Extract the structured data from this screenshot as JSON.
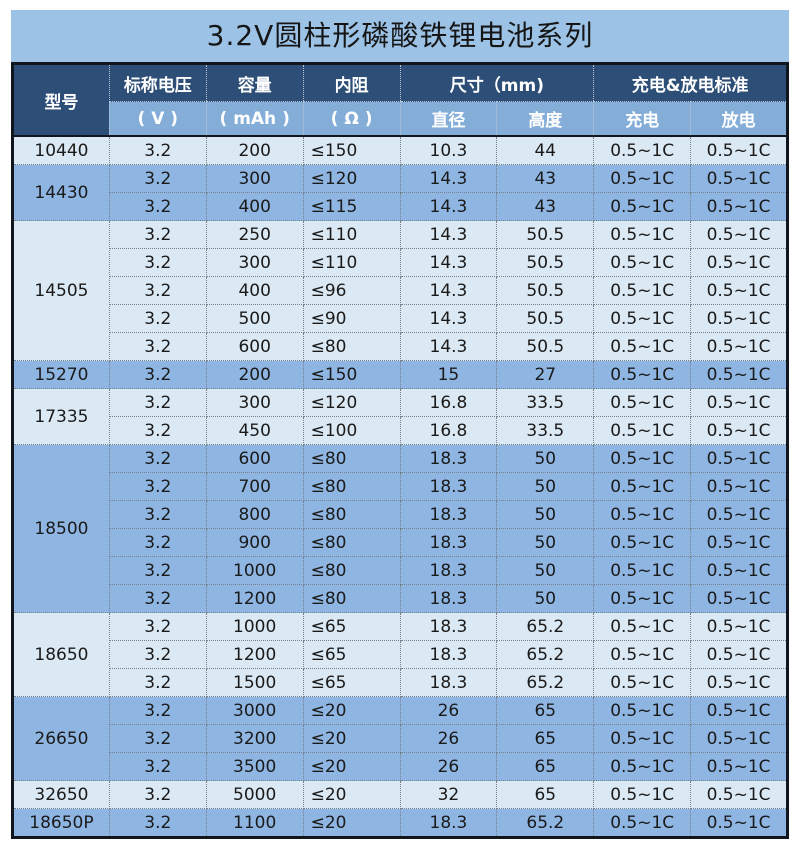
{
  "title": "3.2V圆柱形磷酸铁锂电池系列",
  "colors": {
    "title_bg": "#9cc2e5",
    "header_dark_bg": "#2d4e77",
    "header_sub_bg": "#84add8",
    "row_light": "#dbe9f4",
    "row_medium": "#8fb6e2",
    "outer_border": "#10151e",
    "body_text": "#1a1a1a"
  },
  "header": {
    "model": "型号",
    "voltage": "标称电压",
    "capacity": "容量",
    "resistance": "内阻",
    "size": "尺寸（mm)",
    "standard": "充电&放电标准",
    "voltage_unit": "( V )",
    "capacity_unit": "( mAh )",
    "resistance_unit": "( Ω )",
    "diameter": "直径",
    "height": "高度",
    "charge": "充电",
    "discharge": "放电"
  },
  "groups": [
    {
      "model": "10440",
      "shade": "light",
      "rows": [
        {
          "voltage": "3.2",
          "capacity": "200",
          "resistance": "≤150",
          "diameter": "10.3",
          "height": "44",
          "charge": "0.5~1C",
          "discharge": "0.5~1C"
        }
      ]
    },
    {
      "model": "14430",
      "shade": "medium",
      "rows": [
        {
          "voltage": "3.2",
          "capacity": "300",
          "resistance": "≤120",
          "diameter": "14.3",
          "height": "43",
          "charge": "0.5~1C",
          "discharge": "0.5~1C"
        },
        {
          "voltage": "3.2",
          "capacity": "400",
          "resistance": "≤115",
          "diameter": "14.3",
          "height": "43",
          "charge": "0.5~1C",
          "discharge": "0.5~1C"
        }
      ]
    },
    {
      "model": "14505",
      "shade": "light",
      "rows": [
        {
          "voltage": "3.2",
          "capacity": "250",
          "resistance": "≤110",
          "diameter": "14.3",
          "height": "50.5",
          "charge": "0.5~1C",
          "discharge": "0.5~1C"
        },
        {
          "voltage": "3.2",
          "capacity": "300",
          "resistance": "≤110",
          "diameter": "14.3",
          "height": "50.5",
          "charge": "0.5~1C",
          "discharge": "0.5~1C"
        },
        {
          "voltage": "3.2",
          "capacity": "400",
          "resistance": "≤96",
          "diameter": "14.3",
          "height": "50.5",
          "charge": "0.5~1C",
          "discharge": "0.5~1C"
        },
        {
          "voltage": "3.2",
          "capacity": "500",
          "resistance": "≤90",
          "diameter": "14.3",
          "height": "50.5",
          "charge": "0.5~1C",
          "discharge": "0.5~1C"
        },
        {
          "voltage": "3.2",
          "capacity": "600",
          "resistance": "≤80",
          "diameter": "14.3",
          "height": "50.5",
          "charge": "0.5~1C",
          "discharge": "0.5~1C"
        }
      ]
    },
    {
      "model": "15270",
      "shade": "medium",
      "rows": [
        {
          "voltage": "3.2",
          "capacity": "200",
          "resistance": "≤150",
          "diameter": "15",
          "height": "27",
          "charge": "0.5~1C",
          "discharge": "0.5~1C"
        }
      ]
    },
    {
      "model": "17335",
      "shade": "light",
      "rows": [
        {
          "voltage": "3.2",
          "capacity": "300",
          "resistance": "≤120",
          "diameter": "16.8",
          "height": "33.5",
          "charge": "0.5~1C",
          "discharge": "0.5~1C"
        },
        {
          "voltage": "3.2",
          "capacity": "450",
          "resistance": "≤100",
          "diameter": "16.8",
          "height": "33.5",
          "charge": "0.5~1C",
          "discharge": "0.5~1C"
        }
      ]
    },
    {
      "model": "18500",
      "shade": "medium",
      "rows": [
        {
          "voltage": "3.2",
          "capacity": "600",
          "resistance": "≤80",
          "diameter": "18.3",
          "height": "50",
          "charge": "0.5~1C",
          "discharge": "0.5~1C"
        },
        {
          "voltage": "3.2",
          "capacity": "700",
          "resistance": "≤80",
          "diameter": "18.3",
          "height": "50",
          "charge": "0.5~1C",
          "discharge": "0.5~1C"
        },
        {
          "voltage": "3.2",
          "capacity": "800",
          "resistance": "≤80",
          "diameter": "18.3",
          "height": "50",
          "charge": "0.5~1C",
          "discharge": "0.5~1C"
        },
        {
          "voltage": "3.2",
          "capacity": "900",
          "resistance": "≤80",
          "diameter": "18.3",
          "height": "50",
          "charge": "0.5~1C",
          "discharge": "0.5~1C"
        },
        {
          "voltage": "3.2",
          "capacity": "1000",
          "resistance": "≤80",
          "diameter": "18.3",
          "height": "50",
          "charge": "0.5~1C",
          "discharge": "0.5~1C"
        },
        {
          "voltage": "3.2",
          "capacity": "1200",
          "resistance": "≤80",
          "diameter": "18.3",
          "height": "50",
          "charge": "0.5~1C",
          "discharge": "0.5~1C"
        }
      ]
    },
    {
      "model": "18650",
      "shade": "light",
      "rows": [
        {
          "voltage": "3.2",
          "capacity": "1000",
          "resistance": "≤65",
          "diameter": "18.3",
          "height": "65.2",
          "charge": "0.5~1C",
          "discharge": "0.5~1C"
        },
        {
          "voltage": "3.2",
          "capacity": "1200",
          "resistance": "≤65",
          "diameter": "18.3",
          "height": "65.2",
          "charge": "0.5~1C",
          "discharge": "0.5~1C"
        },
        {
          "voltage": "3.2",
          "capacity": "1500",
          "resistance": "≤65",
          "diameter": "18.3",
          "height": "65.2",
          "charge": "0.5~1C",
          "discharge": "0.5~1C"
        }
      ]
    },
    {
      "model": "26650",
      "shade": "medium",
      "rows": [
        {
          "voltage": "3.2",
          "capacity": "3000",
          "resistance": "≤20",
          "diameter": "26",
          "height": "65",
          "charge": "0.5~1C",
          "discharge": "0.5~1C"
        },
        {
          "voltage": "3.2",
          "capacity": "3200",
          "resistance": "≤20",
          "diameter": "26",
          "height": "65",
          "charge": "0.5~1C",
          "discharge": "0.5~1C"
        },
        {
          "voltage": "3.2",
          "capacity": "3500",
          "resistance": "≤20",
          "diameter": "26",
          "height": "65",
          "charge": "0.5~1C",
          "discharge": "0.5~1C"
        }
      ]
    },
    {
      "model": "32650",
      "shade": "light",
      "rows": [
        {
          "voltage": "3.2",
          "capacity": "5000",
          "resistance": "≤20",
          "diameter": "32",
          "height": "65",
          "charge": "0.5~1C",
          "discharge": "0.5~1C"
        }
      ]
    },
    {
      "model": "18650P",
      "shade": "medium",
      "rows": [
        {
          "voltage": "3.2",
          "capacity": "1100",
          "resistance": "≤20",
          "diameter": "18.3",
          "height": "65.2",
          "charge": "0.5~1C",
          "discharge": "0.5~1C"
        }
      ]
    }
  ]
}
